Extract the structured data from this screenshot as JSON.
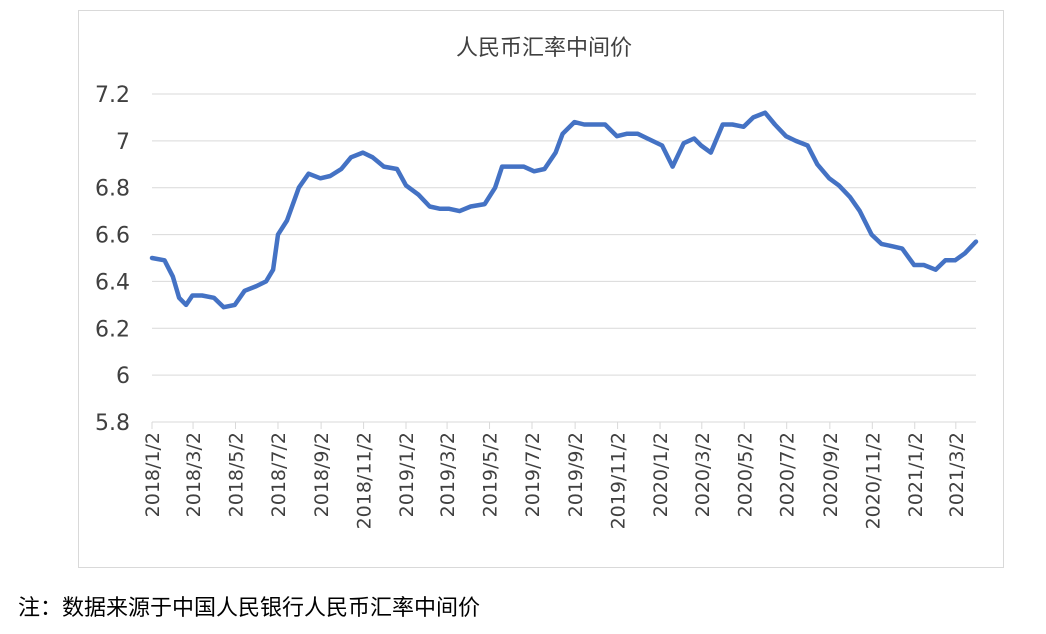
{
  "chart_data": {
    "type": "line",
    "title": "人民币汇率中间价",
    "xlabel": "",
    "ylabel": "",
    "ylim": [
      5.8,
      7.2
    ],
    "yticks": [
      "7.2",
      "7",
      "6.8",
      "6.6",
      "6.4",
      "6.2",
      "6",
      "5.8"
    ],
    "grid": true,
    "legend": "none",
    "line_color": "#4472c4",
    "x_tick_labels": [
      "2018/1/2",
      "2018/3/2",
      "2018/5/2",
      "2018/7/2",
      "2018/9/2",
      "2018/11/2",
      "2019/1/2",
      "2019/3/2",
      "2019/5/2",
      "2019/7/2",
      "2019/9/2",
      "2019/11/2",
      "2020/1/2",
      "2020/3/2",
      "2020/5/2",
      "2020/7/2",
      "2020/9/2",
      "2020/11/2",
      "2021/1/2",
      "2021/3/2"
    ],
    "series": [
      {
        "values": [
          [
            "2018/1/2",
            6.5
          ],
          [
            "2018/1/20",
            6.49
          ],
          [
            "2018/2/1",
            6.42
          ],
          [
            "2018/2/10",
            6.33
          ],
          [
            "2018/2/20",
            6.3
          ],
          [
            "2018/3/1",
            6.34
          ],
          [
            "2018/3/15",
            6.34
          ],
          [
            "2018/4/1",
            6.33
          ],
          [
            "2018/4/15",
            6.29
          ],
          [
            "2018/5/1",
            6.3
          ],
          [
            "2018/5/15",
            6.36
          ],
          [
            "2018/6/1",
            6.38
          ],
          [
            "2018/6/15",
            6.4
          ],
          [
            "2018/6/25",
            6.45
          ],
          [
            "2018/7/2",
            6.6
          ],
          [
            "2018/7/15",
            6.66
          ],
          [
            "2018/8/1",
            6.8
          ],
          [
            "2018/8/15",
            6.86
          ],
          [
            "2018/9/1",
            6.84
          ],
          [
            "2018/9/15",
            6.85
          ],
          [
            "2018/10/1",
            6.88
          ],
          [
            "2018/10/15",
            6.93
          ],
          [
            "2018/11/1",
            6.95
          ],
          [
            "2018/11/15",
            6.93
          ],
          [
            "2018/12/1",
            6.89
          ],
          [
            "2018/12/20",
            6.88
          ],
          [
            "2019/1/2",
            6.81
          ],
          [
            "2019/1/20",
            6.77
          ],
          [
            "2019/2/5",
            6.72
          ],
          [
            "2019/2/20",
            6.71
          ],
          [
            "2019/3/5",
            6.71
          ],
          [
            "2019/3/20",
            6.7
          ],
          [
            "2019/4/5",
            6.72
          ],
          [
            "2019/4/25",
            6.73
          ],
          [
            "2019/5/10",
            6.8
          ],
          [
            "2019/5/20",
            6.89
          ],
          [
            "2019/6/5",
            6.89
          ],
          [
            "2019/6/20",
            6.89
          ],
          [
            "2019/7/5",
            6.87
          ],
          [
            "2019/7/20",
            6.88
          ],
          [
            "2019/8/5",
            6.95
          ],
          [
            "2019/8/15",
            7.03
          ],
          [
            "2019/9/1",
            7.08
          ],
          [
            "2019/9/15",
            7.07
          ],
          [
            "2019/10/1",
            7.07
          ],
          [
            "2019/10/15",
            7.07
          ],
          [
            "2019/11/1",
            7.02
          ],
          [
            "2019/11/15",
            7.03
          ],
          [
            "2019/12/1",
            7.03
          ],
          [
            "2019/12/15",
            7.01
          ],
          [
            "2020/1/5",
            6.98
          ],
          [
            "2020/1/20",
            6.89
          ],
          [
            "2020/2/5",
            6.99
          ],
          [
            "2020/2/20",
            7.01
          ],
          [
            "2020/3/1",
            6.98
          ],
          [
            "2020/3/15",
            6.95
          ],
          [
            "2020/4/1",
            7.07
          ],
          [
            "2020/4/15",
            7.07
          ],
          [
            "2020/5/1",
            7.06
          ],
          [
            "2020/5/15",
            7.1
          ],
          [
            "2020/6/1",
            7.12
          ],
          [
            "2020/6/15",
            7.07
          ],
          [
            "2020/7/1",
            7.02
          ],
          [
            "2020/7/15",
            7.0
          ],
          [
            "2020/8/1",
            6.98
          ],
          [
            "2020/8/15",
            6.9
          ],
          [
            "2020/9/1",
            6.84
          ],
          [
            "2020/9/15",
            6.81
          ],
          [
            "2020/10/1",
            6.76
          ],
          [
            "2020/10/15",
            6.7
          ],
          [
            "2020/11/1",
            6.6
          ],
          [
            "2020/11/15",
            6.56
          ],
          [
            "2020/12/1",
            6.55
          ],
          [
            "2020/12/15",
            6.54
          ],
          [
            "2021/1/1",
            6.47
          ],
          [
            "2021/1/15",
            6.47
          ],
          [
            "2021/2/1",
            6.45
          ],
          [
            "2021/2/15",
            6.49
          ],
          [
            "2021/3/1",
            6.49
          ],
          [
            "2021/3/15",
            6.52
          ],
          [
            "2021/3/31",
            6.57
          ]
        ]
      }
    ]
  },
  "footnote": "注：数据来源于中国人民银行人民币汇率中间价"
}
